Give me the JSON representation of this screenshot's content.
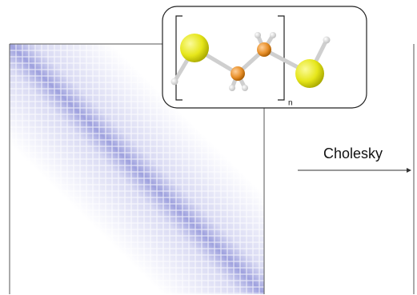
{
  "arrow_label": "Cholesky",
  "polymer_repeat": "n"
}
